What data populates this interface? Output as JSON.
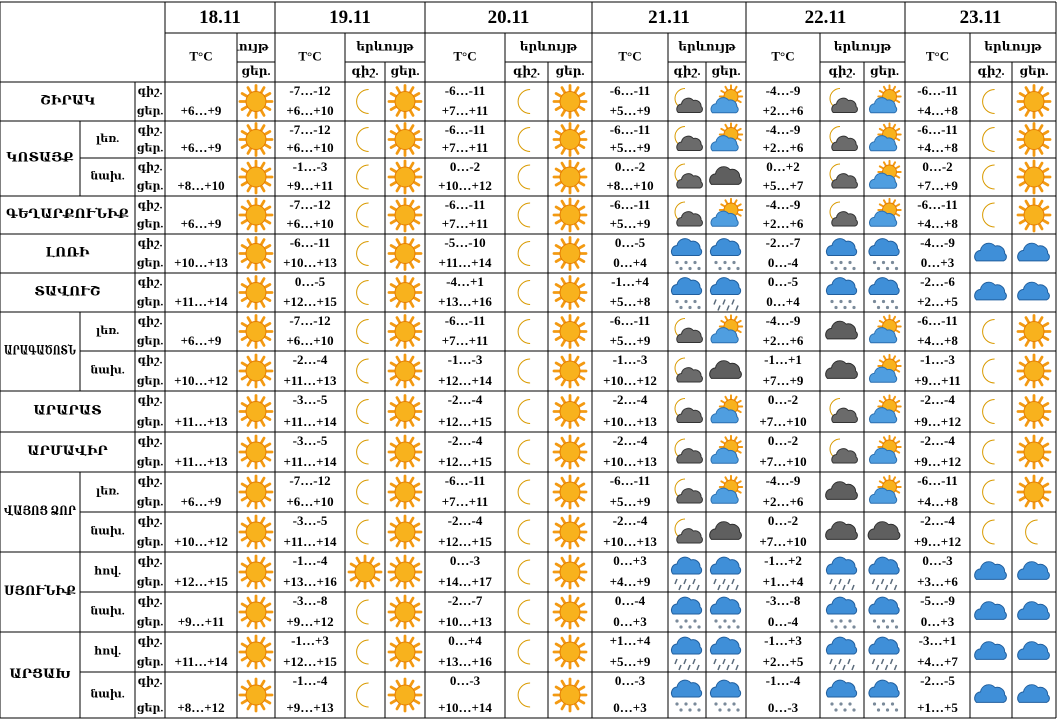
{
  "header": {
    "dates": [
      "18.11",
      "19.11",
      "20.11",
      "21.11",
      "22.11",
      "23.11"
    ],
    "temp_label": "T°C",
    "phenomenon_label": "երևույթ",
    "night_label": "գիշ.",
    "day_label": "ցեր."
  },
  "regions": [
    {
      "name": "ՇԻՐԱԿ",
      "zones": [
        {
          "day18": "+6…+9",
          "forecast": [
            [
              "-7…-12",
              "+6…+10"
            ],
            [
              "-6…-11",
              "+7…+11"
            ],
            [
              "-6…-11",
              "+5…+9"
            ],
            [
              "-4…-9",
              "+2…+6"
            ],
            [
              "-6…-11",
              "+4…+8"
            ]
          ]
        }
      ]
    },
    {
      "name": "ԿՈՏԱՅՔ",
      "zones": [
        {
          "label": "լեռ.",
          "day18": "+6…+9",
          "forecast": [
            [
              "-7…-12",
              "+6…+10"
            ],
            [
              "-6…-11",
              "+7…+11"
            ],
            [
              "-6…-11",
              "+5…+9"
            ],
            [
              "-4…-9",
              "+2…+6"
            ],
            [
              "-6…-11",
              "+4…+8"
            ]
          ]
        },
        {
          "label": "նախ.",
          "day18": "+8…+10",
          "forecast": [
            [
              "-1…-3",
              "+9…+11"
            ],
            [
              "0…-2",
              "+10…+12"
            ],
            [
              "0…-2",
              "+8…+10"
            ],
            [
              "0…+2",
              "+5…+7"
            ],
            [
              "0…-2",
              "+7…+9"
            ]
          ]
        }
      ]
    },
    {
      "name": "ԳԵՂԱՐՔՈՒՆԻՔ",
      "zones": [
        {
          "day18": "+6…+9",
          "forecast": [
            [
              "-7…-12",
              "+6…+10"
            ],
            [
              "-6…-11",
              "+7…+11"
            ],
            [
              "-6…-11",
              "+5…+9"
            ],
            [
              "-4…-9",
              "+2…+6"
            ],
            [
              "-6…-11",
              "+4…+8"
            ]
          ]
        }
      ]
    },
    {
      "name": "ԼՈՌԻ",
      "zones": [
        {
          "day18": "+10…+13",
          "forecast": [
            [
              "-6…-11",
              "+10…+13"
            ],
            [
              "-5…-10",
              "+11…+14"
            ],
            [
              "0…-5",
              "0…+4"
            ],
            [
              "-2…-7",
              "0…-4"
            ],
            [
              "-4…-9",
              "0…+3"
            ]
          ]
        }
      ]
    },
    {
      "name": "ՏԱՎՈՒՇ",
      "zones": [
        {
          "day18": "+11…+14",
          "forecast": [
            [
              "0…-5",
              "+12…+15"
            ],
            [
              "-4…+1",
              "+13…+16"
            ],
            [
              "-1…+4",
              "+5…+8"
            ],
            [
              "0…-5",
              "0…+4"
            ],
            [
              "-2…-6",
              "+2…+5"
            ]
          ]
        }
      ]
    },
    {
      "name": "ԱՐԱԳԱԾՈՏՆ",
      "zones": [
        {
          "label": "լեռ.",
          "day18": "+6…+9",
          "forecast": [
            [
              "-7…-12",
              "+6…+10"
            ],
            [
              "-6…-11",
              "+7…+11"
            ],
            [
              "-6…-11",
              "+5…+9"
            ],
            [
              "-4…-9",
              "+2…+6"
            ],
            [
              "-6…-11",
              "+4…+8"
            ]
          ]
        },
        {
          "label": "նախ.",
          "day18": "+10…+12",
          "forecast": [
            [
              "-2…-4",
              "+11…+13"
            ],
            [
              "-1…-3",
              "+12…+14"
            ],
            [
              "-1…-3",
              "+10…+12"
            ],
            [
              "-1…+1",
              "+7…+9"
            ],
            [
              "-1…-3",
              "+9…+11"
            ]
          ]
        }
      ]
    },
    {
      "name": "ԱՐԱՐԱՏ",
      "zones": [
        {
          "day18": "+11…+13",
          "forecast": [
            [
              "-3…-5",
              "+11…+14"
            ],
            [
              "-2…-4",
              "+12…+15"
            ],
            [
              "-2…-4",
              "+10…+13"
            ],
            [
              "0…-2",
              "+7…+10"
            ],
            [
              "-2…-4",
              "+9…+12"
            ]
          ]
        }
      ]
    },
    {
      "name": "ԱՐՄԱՎԻՐ",
      "zones": [
        {
          "day18": "+11…+13",
          "forecast": [
            [
              "-3…-5",
              "+11…+14"
            ],
            [
              "-2…-4",
              "+12…+15"
            ],
            [
              "-2…-4",
              "+10…+13"
            ],
            [
              "0…-2",
              "+7…+10"
            ],
            [
              "-2…-4",
              "+9…+12"
            ]
          ]
        }
      ]
    },
    {
      "name": "ՎԱՅՈՑ ՁՈՐ",
      "zones": [
        {
          "label": "լեռ.",
          "day18": "+6…+9",
          "forecast": [
            [
              "-7…-12",
              "+6…+10"
            ],
            [
              "-6…-11",
              "+7…+11"
            ],
            [
              "-6…-11",
              "+5…+9"
            ],
            [
              "-4…-9",
              "+2…+6"
            ],
            [
              "-6…-11",
              "+4…+8"
            ]
          ]
        },
        {
          "label": "նախ.",
          "day18": "+10…+12",
          "forecast": [
            [
              "-3…-5",
              "+11…+14"
            ],
            [
              "-2…-4",
              "+12…+15"
            ],
            [
              "-2…-4",
              "+10…+13"
            ],
            [
              "0…-2",
              "+7…+10"
            ],
            [
              "-2…-4",
              "+9…+12"
            ]
          ]
        }
      ]
    },
    {
      "name": "ՍՅՈՒՆԻՔ",
      "zones": [
        {
          "label": "հով.",
          "day18": "+12…+15",
          "forecast": [
            [
              "-1…-4",
              "+13…+16"
            ],
            [
              "0…-3",
              "+14…+17"
            ],
            [
              "0…+3",
              "+4…+9"
            ],
            [
              "-1…+2",
              "+1…+4"
            ],
            [
              "0…-3",
              "+3…+6"
            ]
          ]
        },
        {
          "label": "նախ.",
          "day18": "+9…+11",
          "forecast": [
            [
              "-3…-8",
              "+9…+12"
            ],
            [
              "-2…-7",
              "+10…+13"
            ],
            [
              "0…-4",
              "0…+3"
            ],
            [
              "-3…-8",
              "0…-4"
            ],
            [
              "-5…-9",
              "0…+3"
            ]
          ]
        }
      ]
    },
    {
      "name": "ԱՐՑԱԽ",
      "zones": [
        {
          "label": "հով.",
          "day18": "+11…+14",
          "forecast": [
            [
              "-1…+3",
              "+12…+15"
            ],
            [
              "0…+4",
              "+13…+16"
            ],
            [
              "+1…+4",
              "+5…+9"
            ],
            [
              "-1…+3",
              "+2…+5"
            ],
            [
              "-3…+1",
              "+4…+7"
            ]
          ]
        },
        {
          "label": "նախ.",
          "day18": "+8…+12",
          "forecast": [
            [
              "-1…-4",
              "+9…+13"
            ],
            [
              "0…-3",
              "+10…+14"
            ],
            [
              "0…-3",
              "0…+3"
            ],
            [
              "-1…-4",
              "0…-3"
            ],
            [
              "-2…-5",
              "+1…+5"
            ]
          ]
        }
      ]
    }
  ]
}
